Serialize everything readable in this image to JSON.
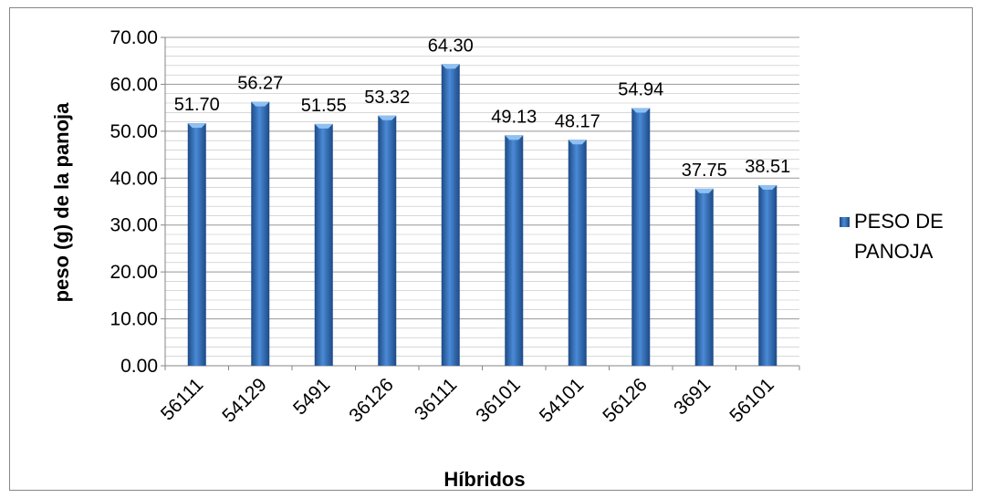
{
  "chart_data": {
    "type": "bar",
    "categories": [
      "56111",
      "54129",
      "5491",
      "36126",
      "36111",
      "36101",
      "54101",
      "56126",
      "3691",
      "56101"
    ],
    "series": [
      {
        "name": "PESO DE PANOJA",
        "values": [
          51.7,
          56.27,
          51.55,
          53.32,
          64.3,
          49.13,
          48.17,
          54.94,
          37.75,
          38.51
        ],
        "data_labels": [
          "51.70",
          "56.27",
          "51.55",
          "53.32",
          "64.30",
          "49.13",
          "48.17",
          "54.94",
          "37.75",
          "38.51"
        ]
      }
    ],
    "ylabel": "peso  (g) de la panoja",
    "xlabel": "Híbridos",
    "ylim": [
      0,
      70
    ],
    "y_ticks": [
      "0.00",
      "10.00",
      "20.00",
      "30.00",
      "40.00",
      "50.00",
      "60.00",
      "70.00"
    ],
    "grid": true,
    "legend_position": "right",
    "colors": {
      "bar": "#3f7fcf",
      "bar_dark": "#1f4f8f",
      "grid": "#8c8c8c"
    }
  }
}
